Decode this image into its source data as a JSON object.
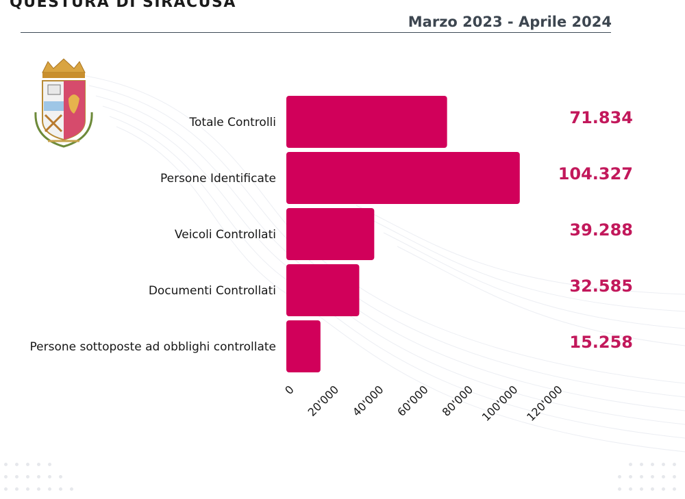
{
  "header": {
    "title": "QUESTURA DI SIRACUSA",
    "period": "Marzo 2023 - Aprile 2024"
  },
  "colors": {
    "bar": "#d1005a",
    "value_text": "#c2185b",
    "rule": "#3c4a55"
  },
  "emblem": {
    "icon": "polizia-di-stato-crest-icon"
  },
  "chart_data": {
    "type": "bar",
    "orientation": "horizontal",
    "categories": [
      "Totale Controlli",
      "Persone Identificate",
      "Veicoli Controllati",
      "Documenti Controllati",
      "Persone sottoposte ad obblighi controllate"
    ],
    "values": [
      71834,
      104327,
      39288,
      32585,
      15258
    ],
    "value_labels": [
      "71.834",
      "104.327",
      "39.288",
      "32.585",
      "15.258"
    ],
    "xlim": [
      0,
      120000
    ],
    "x_ticks": [
      0,
      20000,
      40000,
      60000,
      80000,
      100000,
      120000
    ],
    "x_tick_labels": [
      "0",
      "20'000",
      "40'000",
      "60'000",
      "80'000",
      "100'000",
      "120'000"
    ],
    "grid": false,
    "legend": "none"
  }
}
